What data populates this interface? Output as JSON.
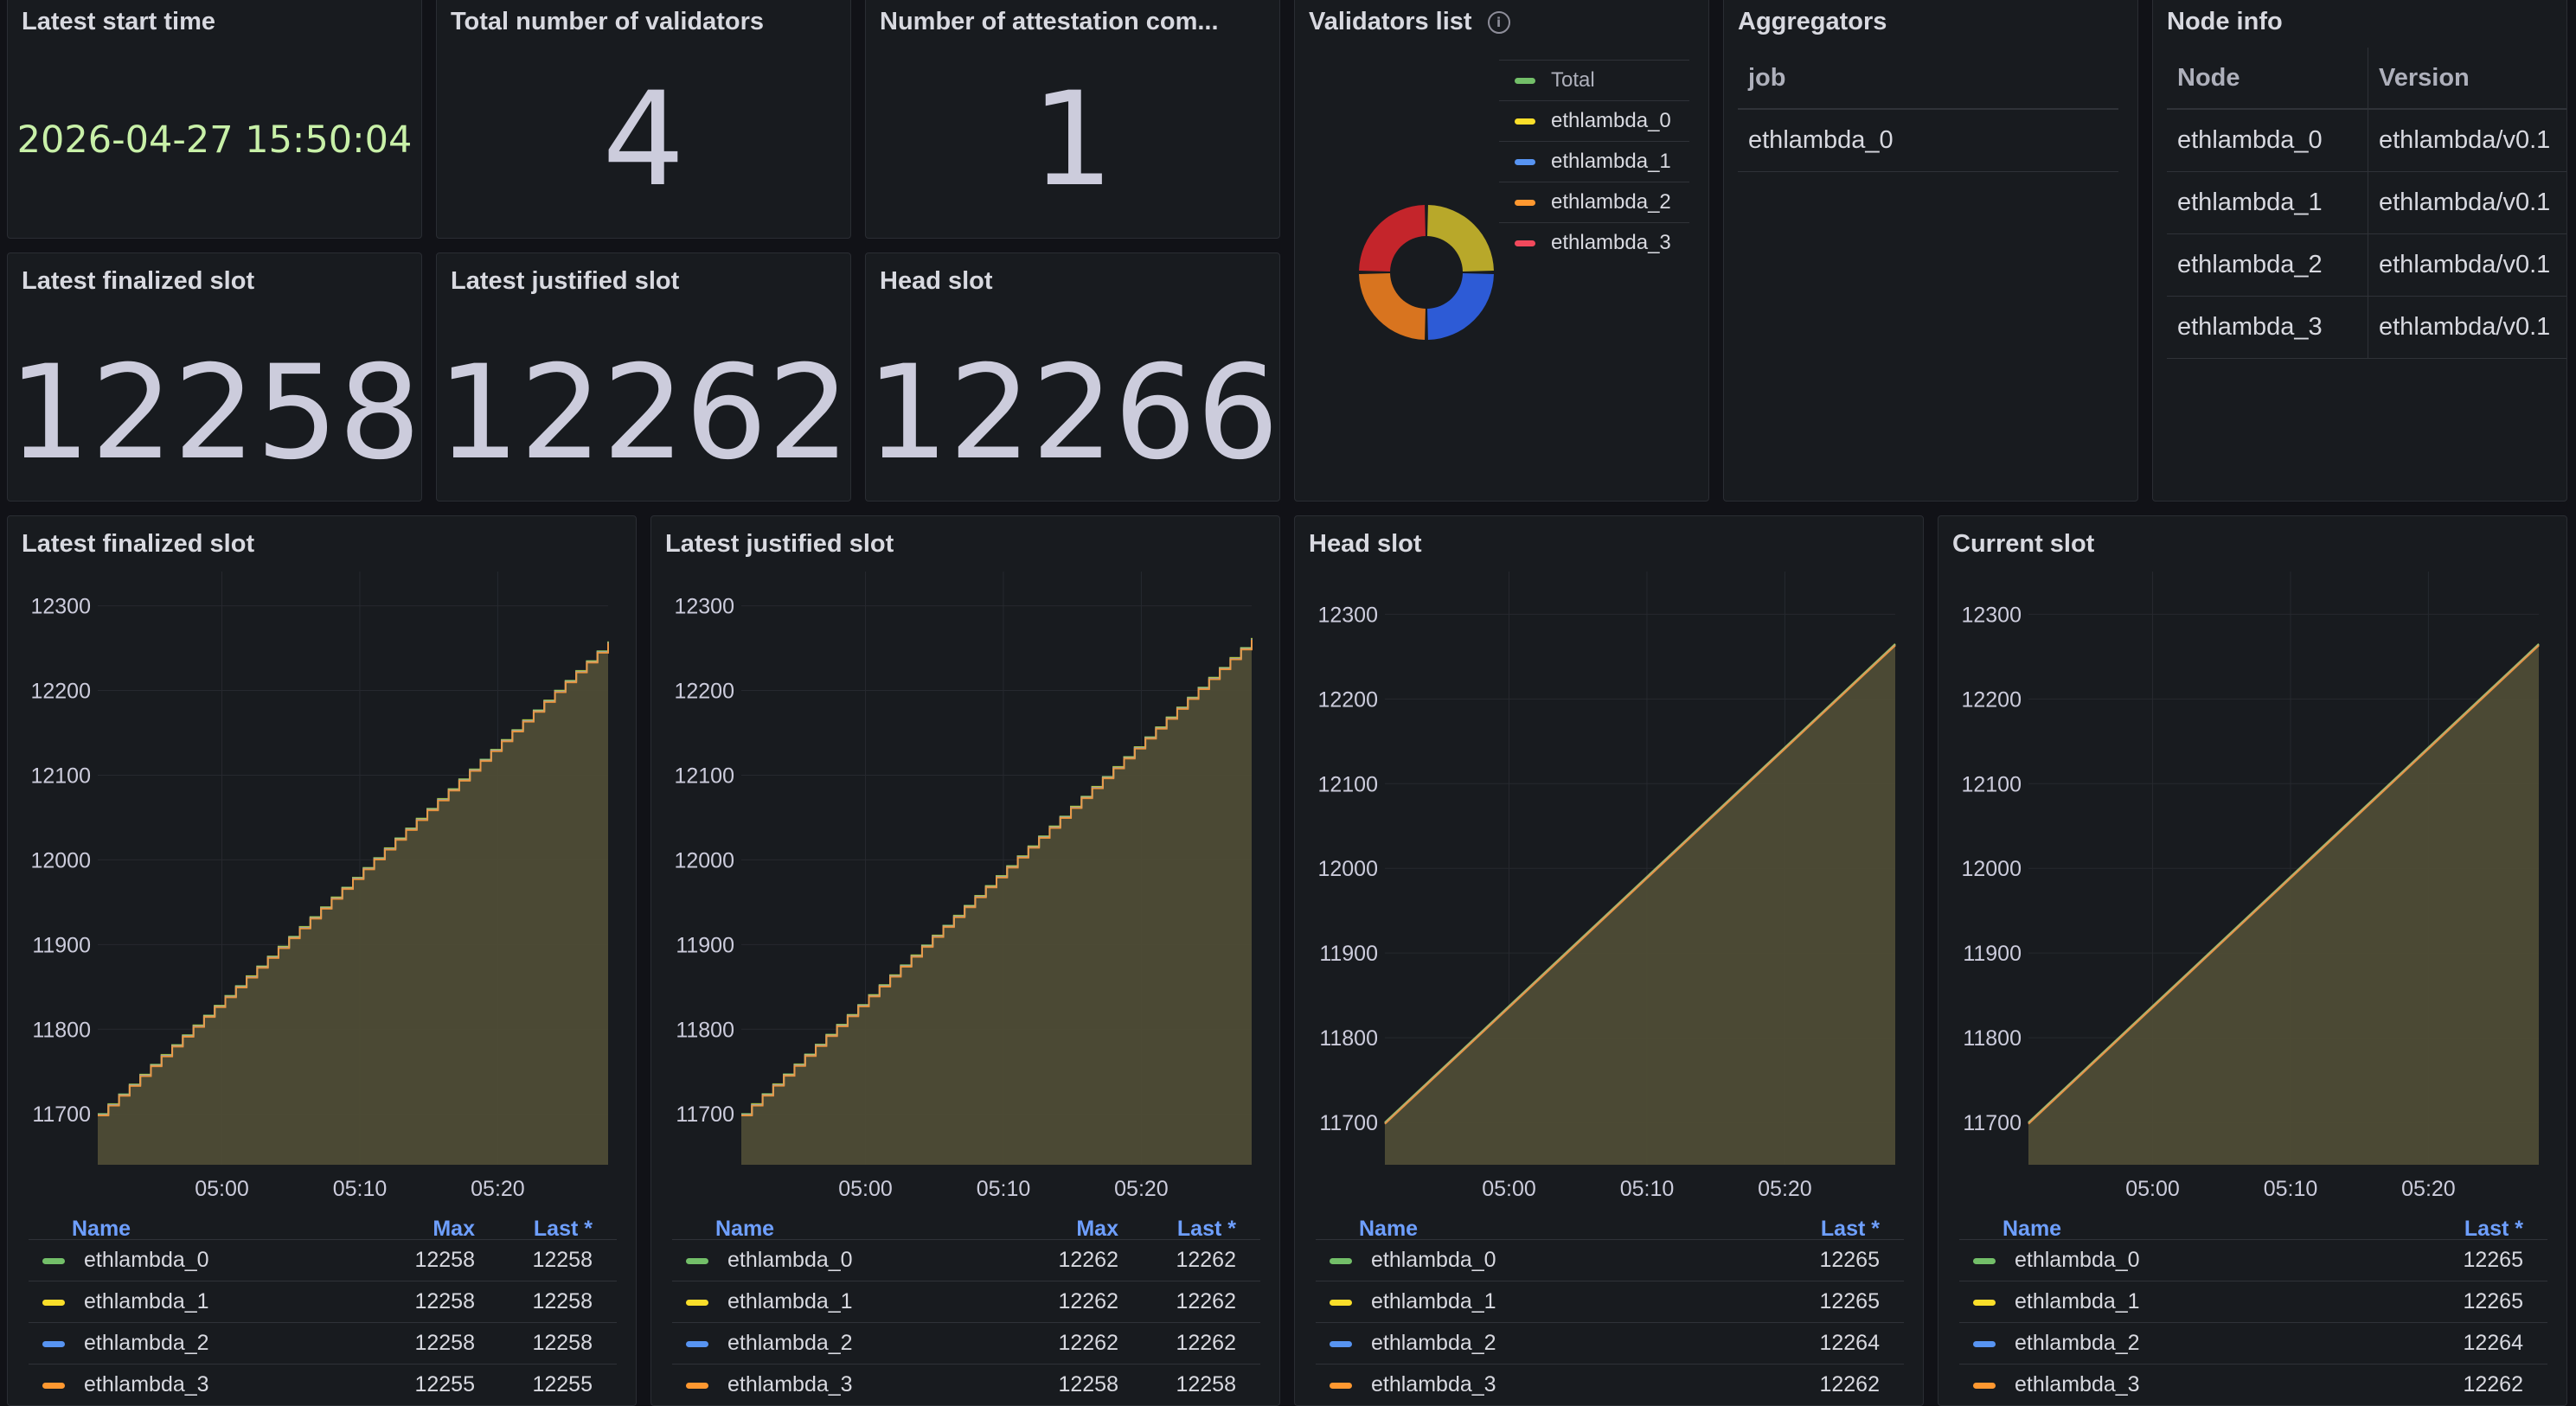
{
  "stats": {
    "start_time": {
      "title": "Latest start time",
      "value": "2026-04-27 15:50:04"
    },
    "validators": {
      "title": "Total number of validators",
      "value": "4"
    },
    "attestation": {
      "title": "Number of attestation com...",
      "value": "1"
    },
    "finalized": {
      "title": "Latest finalized slot",
      "value": "12258"
    },
    "justified": {
      "title": "Latest justified slot",
      "value": "12262"
    },
    "head": {
      "title": "Head slot",
      "value": "12266"
    }
  },
  "validators_list": {
    "title": "Validators list",
    "legend": [
      {
        "label": "Total",
        "color": "#73bf69"
      },
      {
        "label": "ethlambda_0",
        "color": "#fade2a"
      },
      {
        "label": "ethlambda_1",
        "color": "#5794f2"
      },
      {
        "label": "ethlambda_2",
        "color": "#ff9830"
      },
      {
        "label": "ethlambda_3",
        "color": "#f2495c"
      }
    ],
    "slices": [
      {
        "name": "ethlambda_0",
        "value": 1,
        "color": "#b8a82a"
      },
      {
        "name": "ethlambda_1",
        "value": 1,
        "color": "#2d5bd6"
      },
      {
        "name": "ethlambda_2",
        "value": 1,
        "color": "#d8741f"
      },
      {
        "name": "ethlambda_3",
        "value": 1,
        "color": "#c4252b"
      }
    ]
  },
  "aggregators": {
    "title": "Aggregators",
    "header": "job",
    "rows": [
      "ethlambda_0"
    ]
  },
  "node_info": {
    "title": "Node info",
    "headers": [
      "Node",
      "Version"
    ],
    "rows": [
      [
        "ethlambda_0",
        "ethlambda/v0.1"
      ],
      [
        "ethlambda_1",
        "ethlambda/v0.1"
      ],
      [
        "ethlambda_2",
        "ethlambda/v0.1"
      ],
      [
        "ethlambda_3",
        "ethlambda/v0.1"
      ]
    ]
  },
  "chart_data": [
    {
      "type": "area",
      "title": "Latest finalized slot",
      "x_ticks": [
        "05:00",
        "05:10",
        "05:20"
      ],
      "y_ticks": [
        12300,
        12200,
        12100,
        12000,
        11900,
        11800,
        11700
      ],
      "ylim": [
        11640,
        12320
      ],
      "x_range": [
        "04:51",
        "05:28"
      ],
      "stepped": true,
      "series_start": 11700,
      "series_end": 12258,
      "legend_columns": [
        "Name",
        "Max",
        "Last *"
      ],
      "series": [
        {
          "name": "ethlambda_0",
          "color": "#73bf69",
          "max": "12258",
          "last": "12258"
        },
        {
          "name": "ethlambda_1",
          "color": "#fade2a",
          "max": "12258",
          "last": "12258"
        },
        {
          "name": "ethlambda_2",
          "color": "#5794f2",
          "max": "12258",
          "last": "12258"
        },
        {
          "name": "ethlambda_3",
          "color": "#ff9830",
          "max": "12255",
          "last": "12255"
        }
      ]
    },
    {
      "type": "area",
      "title": "Latest justified slot",
      "x_ticks": [
        "05:00",
        "05:10",
        "05:20"
      ],
      "y_ticks": [
        12300,
        12200,
        12100,
        12000,
        11900,
        11800,
        11700
      ],
      "ylim": [
        11640,
        12320
      ],
      "x_range": [
        "04:51",
        "05:28"
      ],
      "stepped": true,
      "series_start": 11700,
      "series_end": 12262,
      "legend_columns": [
        "Name",
        "Max",
        "Last *"
      ],
      "series": [
        {
          "name": "ethlambda_0",
          "color": "#73bf69",
          "max": "12262",
          "last": "12262"
        },
        {
          "name": "ethlambda_1",
          "color": "#fade2a",
          "max": "12262",
          "last": "12262"
        },
        {
          "name": "ethlambda_2",
          "color": "#5794f2",
          "max": "12262",
          "last": "12262"
        },
        {
          "name": "ethlambda_3",
          "color": "#ff9830",
          "max": "12258",
          "last": "12258"
        }
      ]
    },
    {
      "type": "area",
      "title": "Head slot",
      "x_ticks": [
        "05:00",
        "05:10",
        "05:20"
      ],
      "y_ticks": [
        12300,
        12200,
        12100,
        12000,
        11900,
        11800,
        11700
      ],
      "ylim": [
        11650,
        12330
      ],
      "x_range": [
        "04:51",
        "05:28"
      ],
      "stepped": false,
      "series_start": 11700,
      "series_end": 12265,
      "legend_columns": [
        "Name",
        "Last *"
      ],
      "series": [
        {
          "name": "ethlambda_0",
          "color": "#73bf69",
          "last": "12265"
        },
        {
          "name": "ethlambda_1",
          "color": "#fade2a",
          "last": "12265"
        },
        {
          "name": "ethlambda_2",
          "color": "#5794f2",
          "last": "12264"
        },
        {
          "name": "ethlambda_3",
          "color": "#ff9830",
          "last": "12262"
        }
      ]
    },
    {
      "type": "area",
      "title": "Current slot",
      "x_ticks": [
        "05:00",
        "05:10",
        "05:20"
      ],
      "y_ticks": [
        12300,
        12200,
        12100,
        12000,
        11900,
        11800,
        11700
      ],
      "ylim": [
        11650,
        12330
      ],
      "x_range": [
        "04:51",
        "05:28"
      ],
      "stepped": false,
      "series_start": 11700,
      "series_end": 12265,
      "legend_columns": [
        "Name",
        "Last *"
      ],
      "series": [
        {
          "name": "ethlambda_0",
          "color": "#73bf69",
          "last": "12265"
        },
        {
          "name": "ethlambda_1",
          "color": "#fade2a",
          "last": "12265"
        },
        {
          "name": "ethlambda_2",
          "color": "#5794f2",
          "last": "12264"
        },
        {
          "name": "ethlambda_3",
          "color": "#ff9830",
          "last": "12262"
        }
      ]
    }
  ]
}
